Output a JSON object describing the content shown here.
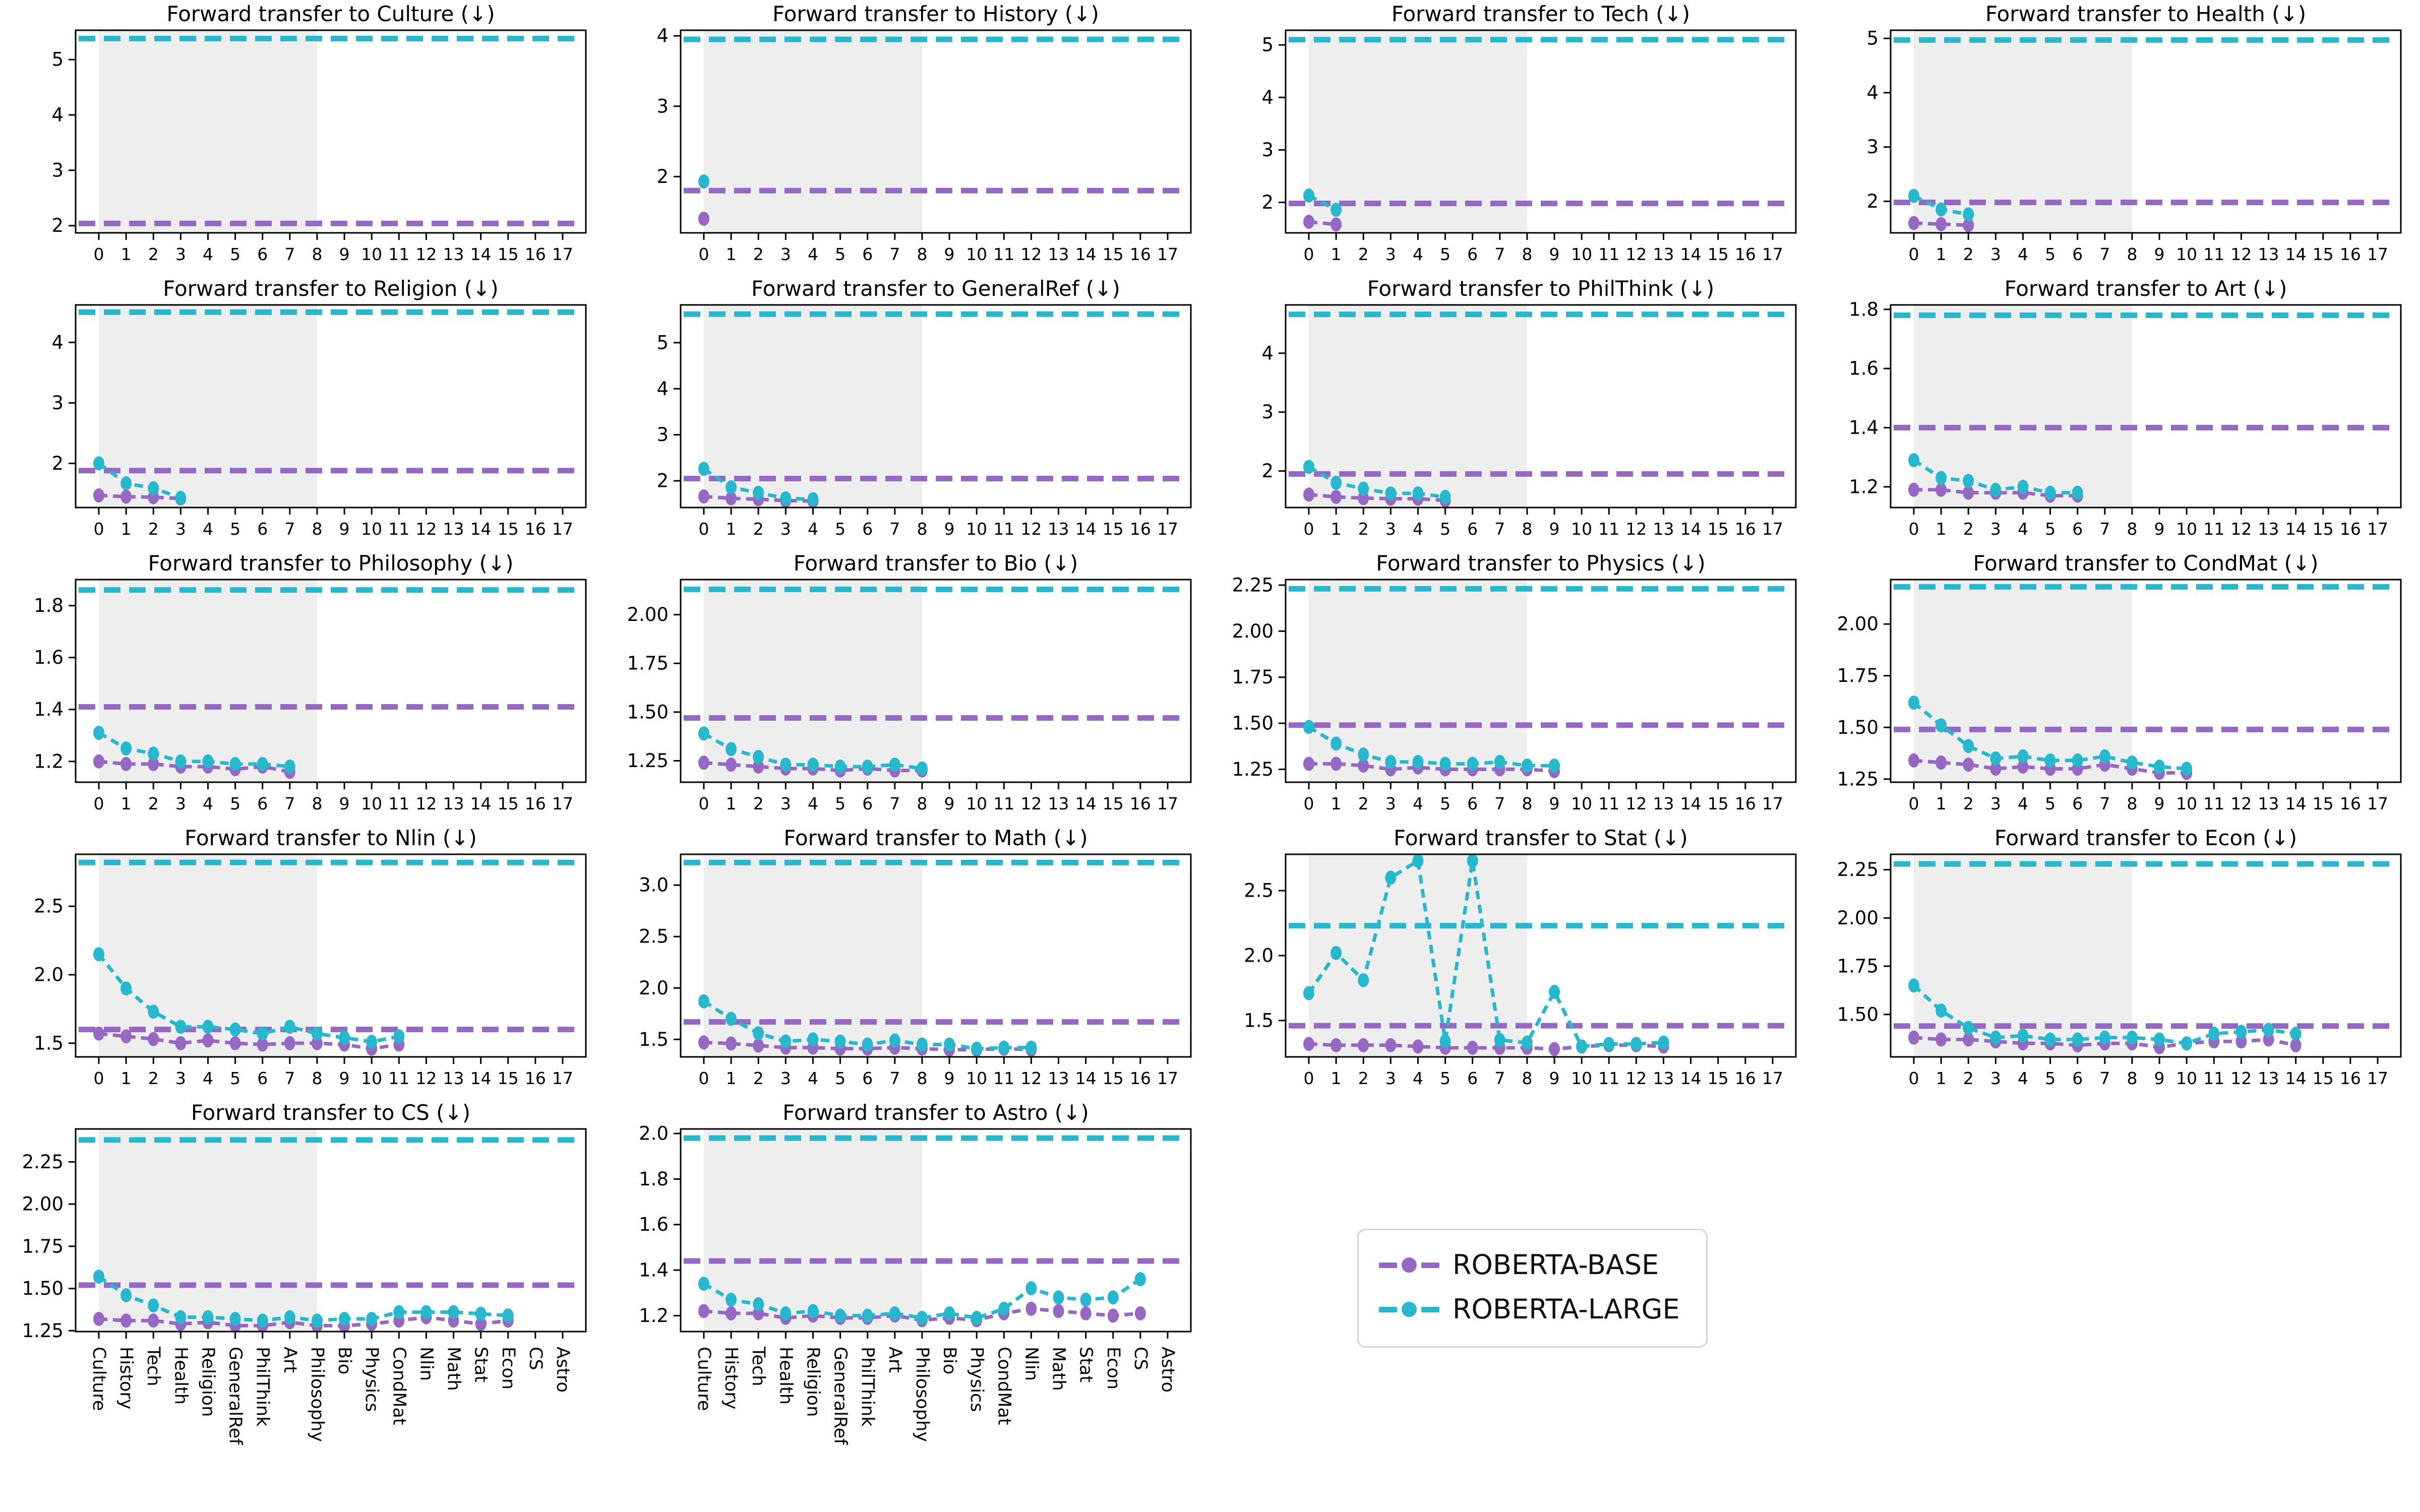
{
  "chart_data": {
    "type": "line",
    "figure_note": "4x5 grid of continual-learning forward-transfer line charts",
    "axes": {
      "xlim": [
        -0.85,
        17.85
      ],
      "shaded_span": [
        0,
        8
      ],
      "shade_color": "#eeeeee",
      "numeric_tick_labels": [
        "0",
        "1",
        "2",
        "3",
        "4",
        "5",
        "6",
        "7",
        "8",
        "9",
        "10",
        "11",
        "12",
        "13",
        "14",
        "15",
        "16",
        "17"
      ],
      "category_tick_labels": [
        "Culture",
        "History",
        "Tech",
        "Health",
        "Religion",
        "GeneralRef",
        "PhilThink",
        "Art",
        "Philosophy",
        "Bio",
        "Physics",
        "CondMat",
        "Nlin",
        "Math",
        "Stat",
        "Econ",
        "CS",
        "Astro"
      ]
    },
    "legend": {
      "items": [
        {
          "label": "ROBERTA-BASE",
          "color": "#9568c4"
        },
        {
          "label": "ROBERTA-LARGE",
          "color": "#26b8cc"
        }
      ]
    },
    "series_meta": {
      "base": {
        "name": "ROBERTA-BASE",
        "color": "#9568c4"
      },
      "large": {
        "name": "ROBERTA-LARGE",
        "color": "#26b8cc"
      }
    },
    "charts": [
      {
        "id": "culture",
        "title": "Forward transfer to Culture (↓)",
        "x_tick_mode": "numeric",
        "ylim": [
          1.87,
          5.53
        ],
        "yticks": [
          2,
          3,
          4,
          5
        ],
        "ytick_labels": [
          "2",
          "3",
          "4",
          "5"
        ],
        "hline_large": 5.38,
        "hline_base": 2.04,
        "base": [],
        "large": []
      },
      {
        "id": "history",
        "title": "Forward transfer to History (↓)",
        "x_tick_mode": "numeric",
        "ylim": [
          1.2,
          4.08
        ],
        "yticks": [
          2,
          3,
          4
        ],
        "ytick_labels": [
          "2",
          "3",
          "4"
        ],
        "hline_large": 3.95,
        "hline_base": 1.8,
        "base": [
          1.4
        ],
        "large": [
          1.93
        ]
      },
      {
        "id": "tech",
        "title": "Forward transfer to Tech (↓)",
        "x_tick_mode": "numeric",
        "ylim": [
          1.42,
          5.28
        ],
        "yticks": [
          2,
          3,
          4,
          5
        ],
        "ytick_labels": [
          "2",
          "3",
          "4",
          "5"
        ],
        "hline_large": 5.1,
        "hline_base": 1.98,
        "base": [
          1.63,
          1.58
        ],
        "large": [
          2.13,
          1.86
        ]
      },
      {
        "id": "health",
        "title": "Forward transfer to Health (↓)",
        "x_tick_mode": "numeric",
        "ylim": [
          1.42,
          5.15
        ],
        "yticks": [
          2,
          3,
          4,
          5
        ],
        "ytick_labels": [
          "2",
          "3",
          "4",
          "5"
        ],
        "hline_large": 4.97,
        "hline_base": 1.98,
        "base": [
          1.6,
          1.58,
          1.56
        ],
        "large": [
          2.1,
          1.85,
          1.76
        ]
      },
      {
        "id": "religion",
        "title": "Forward transfer to Religion (↓)",
        "x_tick_mode": "numeric",
        "ylim": [
          1.27,
          4.62
        ],
        "yticks": [
          2,
          3,
          4
        ],
        "ytick_labels": [
          "2",
          "3",
          "4"
        ],
        "hline_large": 4.5,
        "hline_base": 1.88,
        "base": [
          1.47,
          1.45,
          1.44,
          1.42
        ],
        "large": [
          2.0,
          1.67,
          1.59,
          1.43
        ]
      },
      {
        "id": "generalref",
        "title": "Forward transfer to GeneralRef (↓)",
        "x_tick_mode": "numeric",
        "ylim": [
          1.42,
          5.82
        ],
        "yticks": [
          2,
          3,
          4,
          5
        ],
        "ytick_labels": [
          "2",
          "3",
          "4",
          "5"
        ],
        "hline_large": 5.62,
        "hline_base": 2.05,
        "base": [
          1.66,
          1.62,
          1.6,
          1.57,
          1.56
        ],
        "large": [
          2.26,
          1.86,
          1.74,
          1.62,
          1.6
        ]
      },
      {
        "id": "philthink",
        "title": "Forward transfer to PhilThink (↓)",
        "x_tick_mode": "numeric",
        "ylim": [
          1.38,
          4.82
        ],
        "yticks": [
          2,
          3,
          4
        ],
        "ytick_labels": [
          "2",
          "3",
          "4"
        ],
        "hline_large": 4.66,
        "hline_base": 1.95,
        "base": [
          1.6,
          1.56,
          1.54,
          1.53,
          1.53,
          1.5
        ],
        "large": [
          2.07,
          1.8,
          1.7,
          1.62,
          1.62,
          1.56
        ]
      },
      {
        "id": "art",
        "title": "Forward transfer to Art (↓)",
        "x_tick_mode": "numeric",
        "ylim": [
          1.13,
          1.815
        ],
        "yticks": [
          1.2,
          1.4,
          1.6,
          1.8
        ],
        "ytick_labels": [
          "1.2",
          "1.4",
          "1.6",
          "1.8"
        ],
        "hline_large": 1.78,
        "hline_base": 1.4,
        "base": [
          1.19,
          1.19,
          1.18,
          1.18,
          1.18,
          1.17,
          1.17
        ],
        "large": [
          1.29,
          1.23,
          1.22,
          1.19,
          1.2,
          1.18,
          1.18
        ]
      },
      {
        "id": "philosophy",
        "title": "Forward transfer to Philosophy (↓)",
        "x_tick_mode": "numeric",
        "ylim": [
          1.12,
          1.9
        ],
        "yticks": [
          1.2,
          1.4,
          1.6,
          1.8
        ],
        "ytick_labels": [
          "1.2",
          "1.4",
          "1.6",
          "1.8"
        ],
        "hline_large": 1.86,
        "hline_base": 1.41,
        "base": [
          1.2,
          1.19,
          1.19,
          1.18,
          1.18,
          1.17,
          1.18,
          1.16
        ],
        "large": [
          1.31,
          1.25,
          1.23,
          1.2,
          1.2,
          1.19,
          1.19,
          1.18
        ]
      },
      {
        "id": "bio",
        "title": "Forward transfer to Bio (↓)",
        "x_tick_mode": "numeric",
        "ylim": [
          1.14,
          2.18
        ],
        "yticks": [
          1.25,
          1.5,
          1.75,
          2.0
        ],
        "ytick_labels": [
          "1.25",
          "1.50",
          "1.75",
          "2.00"
        ],
        "hline_large": 2.13,
        "hline_base": 1.47,
        "base": [
          1.24,
          1.23,
          1.22,
          1.21,
          1.21,
          1.2,
          1.21,
          1.2,
          1.2
        ],
        "large": [
          1.39,
          1.31,
          1.27,
          1.23,
          1.23,
          1.22,
          1.22,
          1.23,
          1.21
        ]
      },
      {
        "id": "physics",
        "title": "Forward transfer to Physics (↓)",
        "x_tick_mode": "numeric",
        "ylim": [
          1.18,
          2.28
        ],
        "yticks": [
          1.25,
          1.5,
          1.75,
          2.0,
          2.25
        ],
        "ytick_labels": [
          "1.25",
          "1.50",
          "1.75",
          "2.00",
          "2.25"
        ],
        "hline_large": 2.23,
        "hline_base": 1.49,
        "base": [
          1.28,
          1.28,
          1.27,
          1.25,
          1.26,
          1.25,
          1.25,
          1.25,
          1.25,
          1.24
        ],
        "large": [
          1.48,
          1.39,
          1.33,
          1.29,
          1.29,
          1.28,
          1.28,
          1.29,
          1.27,
          1.27
        ]
      },
      {
        "id": "condmat",
        "title": "Forward transfer to CondMat (↓)",
        "x_tick_mode": "numeric",
        "ylim": [
          1.235,
          2.215
        ],
        "yticks": [
          1.25,
          1.5,
          1.75,
          2.0
        ],
        "ytick_labels": [
          "1.25",
          "1.50",
          "1.75",
          "2.00"
        ],
        "hline_large": 2.18,
        "hline_base": 1.49,
        "base": [
          1.34,
          1.33,
          1.32,
          1.3,
          1.31,
          1.3,
          1.3,
          1.32,
          1.3,
          1.28,
          1.28
        ],
        "large": [
          1.62,
          1.51,
          1.41,
          1.35,
          1.36,
          1.34,
          1.34,
          1.36,
          1.33,
          1.31,
          1.3
        ]
      },
      {
        "id": "nlin",
        "title": "Forward transfer to Nlin (↓)",
        "x_tick_mode": "numeric",
        "ylim": [
          1.4,
          2.88
        ],
        "yticks": [
          1.5,
          2.0,
          2.5
        ],
        "ytick_labels": [
          "1.5",
          "2.0",
          "2.5"
        ],
        "hline_large": 2.82,
        "hline_base": 1.6,
        "base": [
          1.57,
          1.55,
          1.53,
          1.5,
          1.52,
          1.5,
          1.49,
          1.5,
          1.5,
          1.49,
          1.46,
          1.49
        ],
        "large": [
          2.15,
          1.9,
          1.73,
          1.62,
          1.62,
          1.6,
          1.57,
          1.62,
          1.57,
          1.54,
          1.51,
          1.55
        ]
      },
      {
        "id": "math",
        "title": "Forward transfer to Math (↓)",
        "x_tick_mode": "numeric",
        "ylim": [
          1.33,
          3.3
        ],
        "yticks": [
          1.5,
          2.0,
          2.5,
          3.0
        ],
        "ytick_labels": [
          "1.5",
          "2.0",
          "2.5",
          "3.0"
        ],
        "hline_large": 3.22,
        "hline_base": 1.67,
        "base": [
          1.47,
          1.46,
          1.44,
          1.42,
          1.42,
          1.41,
          1.41,
          1.42,
          1.41,
          1.4,
          1.4,
          1.41,
          1.4
        ],
        "large": [
          1.87,
          1.7,
          1.56,
          1.48,
          1.5,
          1.48,
          1.45,
          1.49,
          1.45,
          1.45,
          1.41,
          1.42,
          1.42
        ]
      },
      {
        "id": "stat",
        "title": "Forward transfer to Stat (↓)",
        "x_tick_mode": "numeric",
        "ylim": [
          1.22,
          2.78
        ],
        "yticks": [
          1.5,
          2.0,
          2.5
        ],
        "ytick_labels": [
          "1.5",
          "2.0",
          "2.5"
        ],
        "hline_large": 2.23,
        "hline_base": 1.46,
        "base": [
          1.32,
          1.31,
          1.31,
          1.31,
          1.3,
          1.29,
          1.29,
          1.29,
          1.29,
          1.28,
          1.3,
          1.31,
          1.31,
          1.3
        ],
        "large": [
          1.71,
          2.02,
          1.81,
          2.6,
          2.73,
          1.34,
          2.73,
          1.35,
          1.33,
          1.72,
          1.3,
          1.32,
          1.32,
          1.33
        ]
      },
      {
        "id": "econ",
        "title": "Forward transfer to Econ (↓)",
        "x_tick_mode": "numeric",
        "ylim": [
          1.28,
          2.33
        ],
        "yticks": [
          1.5,
          1.75,
          2.0,
          2.25
        ],
        "ytick_labels": [
          "1.50",
          "1.75",
          "2.00",
          "2.25"
        ],
        "hline_large": 2.28,
        "hline_base": 1.44,
        "base": [
          1.38,
          1.37,
          1.37,
          1.36,
          1.35,
          1.35,
          1.34,
          1.35,
          1.35,
          1.33,
          1.35,
          1.36,
          1.36,
          1.37,
          1.34
        ],
        "large": [
          1.65,
          1.52,
          1.43,
          1.38,
          1.39,
          1.37,
          1.37,
          1.38,
          1.38,
          1.37,
          1.35,
          1.4,
          1.41,
          1.42,
          1.4
        ]
      },
      {
        "id": "cs",
        "title": "Forward transfer to CS (↓)",
        "x_tick_mode": "categories",
        "ylim": [
          1.245,
          2.445
        ],
        "yticks": [
          1.25,
          1.5,
          1.75,
          2.0,
          2.25
        ],
        "ytick_labels": [
          "1.25",
          "1.50",
          "1.75",
          "2.00",
          "2.25"
        ],
        "hline_large": 2.38,
        "hline_base": 1.52,
        "base": [
          1.32,
          1.31,
          1.31,
          1.29,
          1.3,
          1.28,
          1.28,
          1.3,
          1.28,
          1.28,
          1.29,
          1.31,
          1.33,
          1.31,
          1.29,
          1.31
        ],
        "large": [
          1.57,
          1.46,
          1.4,
          1.33,
          1.33,
          1.32,
          1.31,
          1.33,
          1.31,
          1.32,
          1.32,
          1.36,
          1.36,
          1.36,
          1.35,
          1.34
        ]
      },
      {
        "id": "astro",
        "title": "Forward transfer to Astro (↓)",
        "x_tick_mode": "categories",
        "ylim": [
          1.13,
          2.02
        ],
        "yticks": [
          1.2,
          1.4,
          1.6,
          1.8,
          2.0
        ],
        "ytick_labels": [
          "1.2",
          "1.4",
          "1.6",
          "1.8",
          "2.0"
        ],
        "hline_large": 1.98,
        "hline_base": 1.44,
        "base": [
          1.22,
          1.21,
          1.21,
          1.19,
          1.2,
          1.19,
          1.19,
          1.2,
          1.18,
          1.19,
          1.18,
          1.21,
          1.23,
          1.22,
          1.21,
          1.2,
          1.21
        ],
        "large": [
          1.34,
          1.27,
          1.25,
          1.21,
          1.22,
          1.2,
          1.2,
          1.21,
          1.19,
          1.21,
          1.19,
          1.23,
          1.32,
          1.28,
          1.27,
          1.28,
          1.36
        ]
      }
    ]
  }
}
